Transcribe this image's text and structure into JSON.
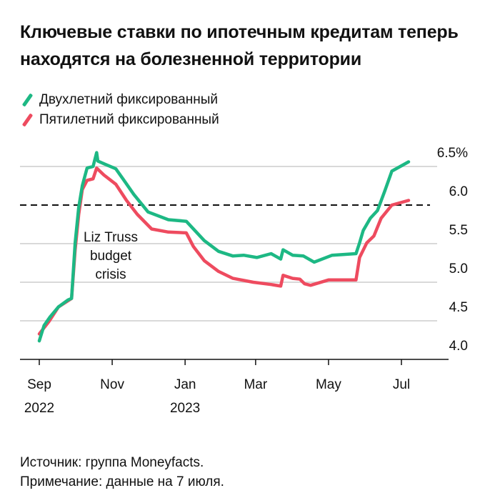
{
  "title": "Ключевые ставки по ипотечным кредитам теперь находятся на болезненной территории",
  "colors": {
    "two_year": "#1db884",
    "five_year": "#ee4b5f",
    "grid": "#d9d9d9",
    "reference": "#111111"
  },
  "footer": {
    "source": "Источник: группа Moneyfacts.",
    "note": "Примечание: данные на 7 июля."
  },
  "chart_data": {
    "type": "line",
    "title": "Ключевые ставки по ипотечным кредитам теперь находятся на болезненной территории",
    "legend_placement": "top-left",
    "grid": true,
    "ylim": [
      4.0,
      6.5
    ],
    "y_ticks": [
      "6.5%",
      "6.0",
      "5.5",
      "5.0",
      "4.5",
      "4.0"
    ],
    "y_tick_values": [
      6.5,
      6.0,
      5.5,
      5.0,
      4.5,
      4.0
    ],
    "x_ticks": [
      {
        "date": "2022-09-01",
        "label": "Sep",
        "sublabel": "2022"
      },
      {
        "date": "2022-11-01",
        "label": "Nov",
        "sublabel": ""
      },
      {
        "date": "2023-01-01",
        "label": "Jan",
        "sublabel": "2023"
      },
      {
        "date": "2023-03-01",
        "label": "Mar",
        "sublabel": ""
      },
      {
        "date": "2023-05-01",
        "label": "May",
        "sublabel": ""
      },
      {
        "date": "2023-07-01",
        "label": "Jul",
        "sublabel": ""
      }
    ],
    "reference_line": {
      "value": 6.0,
      "style": "dashed"
    },
    "annotation": {
      "lines": [
        "Liz Truss",
        "budget",
        "crisis"
      ],
      "date": "2022-10-23",
      "value": 5.3
    },
    "series": [
      {
        "name": "Двухлетний фиксированный",
        "color": "#1db884",
        "points": [
          [
            "2022-09-01",
            4.24
          ],
          [
            "2022-09-05",
            4.44
          ],
          [
            "2022-09-10",
            4.55
          ],
          [
            "2022-09-17",
            4.68
          ],
          [
            "2022-09-25",
            4.77
          ],
          [
            "2022-09-28",
            4.79
          ],
          [
            "2022-10-01",
            5.51
          ],
          [
            "2022-10-04",
            5.97
          ],
          [
            "2022-10-07",
            6.25
          ],
          [
            "2022-10-11",
            6.48
          ],
          [
            "2022-10-16",
            6.5
          ],
          [
            "2022-10-19",
            6.68
          ],
          [
            "2022-10-20",
            6.57
          ],
          [
            "2022-10-26",
            6.53
          ],
          [
            "2022-11-04",
            6.47
          ],
          [
            "2022-11-10",
            6.34
          ],
          [
            "2022-11-19",
            6.14
          ],
          [
            "2022-12-01",
            5.91
          ],
          [
            "2022-12-18",
            5.81
          ],
          [
            "2023-01-02",
            5.79
          ],
          [
            "2023-01-17",
            5.54
          ],
          [
            "2023-01-29",
            5.4
          ],
          [
            "2023-02-10",
            5.34
          ],
          [
            "2023-02-19",
            5.35
          ],
          [
            "2023-03-02",
            5.32
          ],
          [
            "2023-03-14",
            5.37
          ],
          [
            "2023-03-22",
            5.3
          ],
          [
            "2023-03-24",
            5.42
          ],
          [
            "2023-04-01",
            5.35
          ],
          [
            "2023-04-10",
            5.34
          ],
          [
            "2023-04-19",
            5.26
          ],
          [
            "2023-05-04",
            5.35
          ],
          [
            "2023-05-24",
            5.37
          ],
          [
            "2023-05-27",
            5.51
          ],
          [
            "2023-05-30",
            5.67
          ],
          [
            "2023-06-05",
            5.83
          ],
          [
            "2023-06-11",
            5.93
          ],
          [
            "2023-06-17",
            6.18
          ],
          [
            "2023-06-23",
            6.44
          ],
          [
            "2023-07-07",
            6.56
          ]
        ]
      },
      {
        "name": "Пятилетний фиксированный",
        "color": "#ee4b5f",
        "points": [
          [
            "2022-09-01",
            4.33
          ],
          [
            "2022-09-09",
            4.49
          ],
          [
            "2022-09-17",
            4.68
          ],
          [
            "2022-09-28",
            4.79
          ],
          [
            "2022-10-01",
            5.42
          ],
          [
            "2022-10-04",
            5.88
          ],
          [
            "2022-10-07",
            6.2
          ],
          [
            "2022-10-11",
            6.32
          ],
          [
            "2022-10-16",
            6.34
          ],
          [
            "2022-10-19",
            6.48
          ],
          [
            "2022-10-25",
            6.39
          ],
          [
            "2022-11-04",
            6.27
          ],
          [
            "2022-11-13",
            6.06
          ],
          [
            "2022-11-22",
            5.88
          ],
          [
            "2022-12-04",
            5.69
          ],
          [
            "2022-12-18",
            5.65
          ],
          [
            "2023-01-02",
            5.64
          ],
          [
            "2023-01-08",
            5.46
          ],
          [
            "2023-01-17",
            5.28
          ],
          [
            "2023-01-29",
            5.14
          ],
          [
            "2023-02-10",
            5.05
          ],
          [
            "2023-02-27",
            5.0
          ],
          [
            "2023-03-14",
            4.97
          ],
          [
            "2023-03-22",
            4.95
          ],
          [
            "2023-03-24",
            5.09
          ],
          [
            "2023-04-01",
            5.05
          ],
          [
            "2023-04-07",
            5.04
          ],
          [
            "2023-04-11",
            4.98
          ],
          [
            "2023-04-16",
            4.96
          ],
          [
            "2023-05-01",
            5.03
          ],
          [
            "2023-05-24",
            5.03
          ],
          [
            "2023-05-27",
            5.32
          ],
          [
            "2023-06-02",
            5.51
          ],
          [
            "2023-06-08",
            5.6
          ],
          [
            "2023-06-14",
            5.83
          ],
          [
            "2023-06-23",
            6.0
          ],
          [
            "2023-07-07",
            6.06
          ]
        ]
      }
    ]
  }
}
